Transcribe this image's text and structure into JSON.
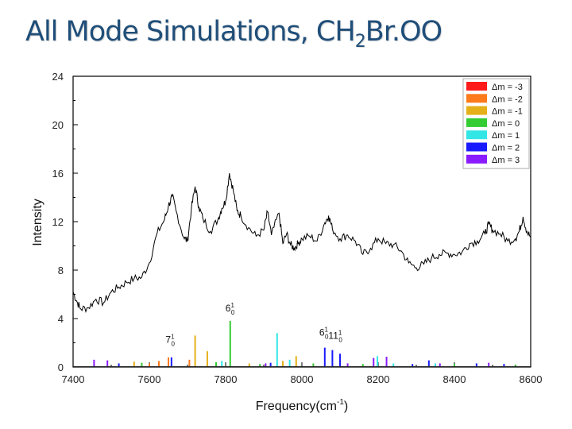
{
  "slide": {
    "title_main": "All Mode Simulations, CH",
    "title_sub": "2",
    "title_tail": "Br.OO"
  },
  "chart_data": {
    "type": "line",
    "xlabel": "Frequency(cm",
    "xlabel_sup": "-1",
    "xlabel_close": ")",
    "ylabel": "Intensity",
    "xlim": [
      7400,
      8600
    ],
    "ylim": [
      0,
      24
    ],
    "x_ticks": [
      "7400",
      "7600",
      "7800",
      "8000",
      "8200",
      "8400",
      "8600"
    ],
    "y_ticks": [
      "0",
      "4",
      "8",
      "12",
      "16",
      "20",
      "24"
    ],
    "legend": [
      {
        "label": "Δm = -3",
        "color": "#ff1a1a"
      },
      {
        "label": "Δm = -2",
        "color": "#ff7a1a"
      },
      {
        "label": "Δm = -1",
        "color": "#e6b01a"
      },
      {
        "label": "Δm = 0",
        "color": "#33cc33"
      },
      {
        "label": "Δm = 1",
        "color": "#33e6e6"
      },
      {
        "label": "Δm = 2",
        "color": "#1a1aff"
      },
      {
        "label": "Δm = 3",
        "color": "#8a1aff"
      }
    ],
    "experimental_series": {
      "color": "#000000",
      "points": [
        [
          7400,
          6.2
        ],
        [
          7410,
          5.4
        ],
        [
          7420,
          4.8
        ],
        [
          7440,
          4.9
        ],
        [
          7460,
          5.6
        ],
        [
          7480,
          5.3
        ],
        [
          7500,
          6.2
        ],
        [
          7520,
          6.6
        ],
        [
          7540,
          7.0
        ],
        [
          7560,
          7.3
        ],
        [
          7580,
          7.4
        ],
        [
          7600,
          8.6
        ],
        [
          7620,
          11.0
        ],
        [
          7640,
          12.2
        ],
        [
          7650,
          13.3
        ],
        [
          7660,
          14.1
        ],
        [
          7670,
          12.9
        ],
        [
          7690,
          10.7
        ],
        [
          7700,
          10.4
        ],
        [
          7710,
          13.0
        ],
        [
          7720,
          14.9
        ],
        [
          7730,
          13.2
        ],
        [
          7740,
          12.3
        ],
        [
          7760,
          11.2
        ],
        [
          7780,
          12.2
        ],
        [
          7790,
          13.1
        ],
        [
          7800,
          13.7
        ],
        [
          7810,
          16.0
        ],
        [
          7820,
          14.6
        ],
        [
          7830,
          12.9
        ],
        [
          7840,
          12.5
        ],
        [
          7860,
          11.5
        ],
        [
          7880,
          10.8
        ],
        [
          7900,
          11.3
        ],
        [
          7910,
          12.8
        ],
        [
          7920,
          10.9
        ],
        [
          7940,
          12.7
        ],
        [
          7950,
          10.2
        ],
        [
          7960,
          11.0
        ],
        [
          7970,
          10.1
        ],
        [
          7980,
          9.8
        ],
        [
          7990,
          10.2
        ],
        [
          8000,
          10.6
        ],
        [
          8020,
          10.8
        ],
        [
          8040,
          10.4
        ],
        [
          8060,
          11.9
        ],
        [
          8070,
          12.5
        ],
        [
          8080,
          11.4
        ],
        [
          8100,
          10.6
        ],
        [
          8120,
          10.9
        ],
        [
          8140,
          10.4
        ],
        [
          8160,
          9.3
        ],
        [
          8180,
          9.8
        ],
        [
          8200,
          10.6
        ],
        [
          8220,
          10.2
        ],
        [
          8240,
          10.1
        ],
        [
          8260,
          9.6
        ],
        [
          8280,
          8.6
        ],
        [
          8300,
          8.2
        ],
        [
          8320,
          8.5
        ],
        [
          8340,
          9.0
        ],
        [
          8360,
          9.3
        ],
        [
          8380,
          9.4
        ],
        [
          8400,
          9.3
        ],
        [
          8420,
          9.5
        ],
        [
          8440,
          10.2
        ],
        [
          8460,
          10.4
        ],
        [
          8480,
          11.0
        ],
        [
          8490,
          11.8
        ],
        [
          8500,
          11.3
        ],
        [
          8520,
          11.0
        ],
        [
          8540,
          10.4
        ],
        [
          8560,
          10.6
        ],
        [
          8570,
          11.2
        ],
        [
          8580,
          12.4
        ],
        [
          8590,
          11.2
        ],
        [
          8600,
          10.7
        ]
      ]
    },
    "simulated_sticks": [
      {
        "x": 7455,
        "y": 0.6,
        "dm": 3
      },
      {
        "x": 7490,
        "y": 0.55,
        "dm": 3
      },
      {
        "x": 7520,
        "y": 0.3,
        "dm": 2
      },
      {
        "x": 7560,
        "y": 0.45,
        "dm": -1
      },
      {
        "x": 7580,
        "y": 0.35,
        "dm": 0
      },
      {
        "x": 7600,
        "y": 0.3,
        "dm": -2
      },
      {
        "x": 7625,
        "y": 0.5,
        "dm": -2
      },
      {
        "x": 7650,
        "y": 0.8,
        "dm": -2
      },
      {
        "x": 7658,
        "y": 0.8,
        "dm": 2
      },
      {
        "x": 7705,
        "y": 0.6,
        "dm": -2
      },
      {
        "x": 7720,
        "y": 2.6,
        "dm": -1
      },
      {
        "x": 7752,
        "y": 1.3,
        "dm": -1
      },
      {
        "x": 7775,
        "y": 0.4,
        "dm": 0
      },
      {
        "x": 7790,
        "y": 0.5,
        "dm": 1
      },
      {
        "x": 7812,
        "y": 3.8,
        "dm": 0
      },
      {
        "x": 7862,
        "y": 0.3,
        "dm": -1
      },
      {
        "x": 7890,
        "y": 0.25,
        "dm": 0
      },
      {
        "x": 7905,
        "y": 0.3,
        "dm": 3
      },
      {
        "x": 7918,
        "y": 0.35,
        "dm": 2
      },
      {
        "x": 7935,
        "y": 2.8,
        "dm": 1
      },
      {
        "x": 7950,
        "y": 0.5,
        "dm": -1
      },
      {
        "x": 7968,
        "y": 0.6,
        "dm": 1
      },
      {
        "x": 7985,
        "y": 0.9,
        "dm": -1
      },
      {
        "x": 8030,
        "y": 0.3,
        "dm": 0
      },
      {
        "x": 8060,
        "y": 1.6,
        "dm": 2
      },
      {
        "x": 8080,
        "y": 1.4,
        "dm": 2
      },
      {
        "x": 8100,
        "y": 1.1,
        "dm": 2
      },
      {
        "x": 8120,
        "y": 0.3,
        "dm": 3
      },
      {
        "x": 8160,
        "y": 0.25,
        "dm": 0
      },
      {
        "x": 8188,
        "y": 0.75,
        "dm": 3
      },
      {
        "x": 8198,
        "y": 0.9,
        "dm": 1
      },
      {
        "x": 8222,
        "y": 0.85,
        "dm": 3
      },
      {
        "x": 8240,
        "y": 0.3,
        "dm": 1
      },
      {
        "x": 8290,
        "y": 0.25,
        "dm": 2
      },
      {
        "x": 8333,
        "y": 0.55,
        "dm": 2
      },
      {
        "x": 8350,
        "y": 0.3,
        "dm": 1
      },
      {
        "x": 8362,
        "y": 0.3,
        "dm": 3
      },
      {
        "x": 8400,
        "y": 0.25,
        "dm": 0
      },
      {
        "x": 8458,
        "y": 0.3,
        "dm": 2
      },
      {
        "x": 8490,
        "y": 0.35,
        "dm": 3
      },
      {
        "x": 8530,
        "y": 0.25,
        "dm": 2
      },
      {
        "x": 8560,
        "y": 0.2,
        "dm": 0
      }
    ],
    "annotations": [
      {
        "id": "ann-6",
        "base": "6",
        "sup": "1",
        "sub": "0",
        "x": 7812,
        "y": 4.6
      },
      {
        "id": "ann-7",
        "base": "7",
        "sup": "1",
        "sub": "0",
        "x": 7655,
        "y": 2.0
      },
      {
        "id": "ann-611",
        "base": "6",
        "sup": "1",
        "sub": "0",
        "base2": "11",
        "sup2": "1",
        "sub2": "0",
        "x": 8058,
        "y": 2.6
      }
    ]
  }
}
